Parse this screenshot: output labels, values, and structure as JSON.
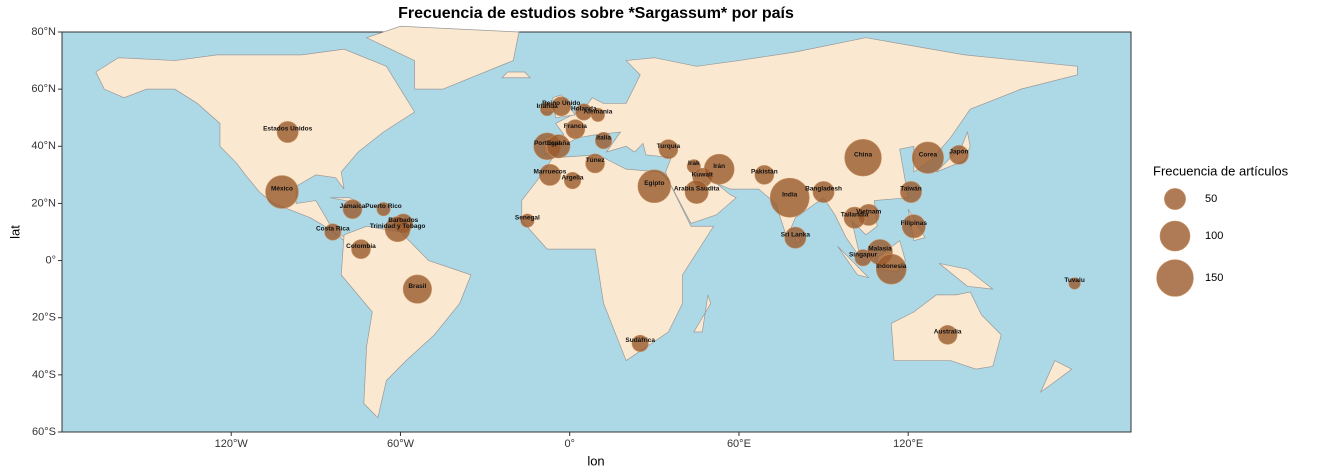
{
  "chart_data": {
    "type": "bubble-map",
    "title": "Frecuencia de estudios sobre *Sargassum* por país",
    "x_label": "lon",
    "y_label": "lat",
    "labels": [
      "Estados Unidos",
      "México",
      "Jamaica",
      "Puerto Rico",
      "Barbados",
      "Trinidad y Tobago",
      "Costa Rica",
      "Colombia",
      "Brasil",
      "Irlanda",
      "Reino Unido",
      "Holanda",
      "Alemania",
      "Francia",
      "Portugal",
      "España",
      "Italia",
      "Túnez",
      "Marruecos",
      "Argelia",
      "Turquía",
      "Egipto",
      "Irak",
      "Kuwait",
      "Irán",
      "Arabia Saudita",
      "Pakistán",
      "India",
      "Bangladesh",
      "China",
      "Corea",
      "Japón",
      "Taiwán",
      "Vietnam",
      "Tailandia",
      "Filipinas",
      "Sri Lanka",
      "Singapur",
      "Malasia",
      "Indonesia",
      "Senegal",
      "Sudáfrica",
      "Australia",
      "Tuvalu"
    ],
    "x": [
      -100,
      -102,
      -77,
      -66,
      -59,
      -61,
      -84,
      -74,
      -54,
      -8,
      -3,
      5,
      10,
      2,
      -8,
      -4,
      12,
      9,
      -7,
      1,
      35,
      30,
      44,
      47,
      53,
      45,
      69,
      78,
      90,
      104,
      127,
      138,
      121,
      106,
      101,
      122,
      80,
      104,
      110,
      114,
      -15,
      25,
      134,
      179
    ],
    "values": [
      45,
      24,
      18,
      18,
      13,
      11,
      10,
      4,
      -10,
      53,
      54,
      52,
      51,
      46,
      40,
      40,
      42,
      34,
      30,
      28,
      39,
      26,
      33,
      29,
      32,
      24,
      30,
      22,
      24,
      36,
      36,
      37,
      24,
      16,
      15,
      12,
      8,
      1,
      3,
      -3,
      14,
      -29,
      -26,
      -8
    ],
    "sizes": [
      50,
      120,
      40,
      20,
      40,
      70,
      30,
      40,
      90,
      20,
      40,
      30,
      20,
      40,
      80,
      60,
      30,
      40,
      50,
      30,
      40,
      120,
      20,
      40,
      100,
      60,
      40,
      170,
      50,
      150,
      110,
      40,
      50,
      50,
      50,
      60,
      50,
      30,
      70,
      100,
      20,
      30,
      40,
      15
    ],
    "color": "#9a5a2c",
    "land_color": "#fbe8d0",
    "ocean_color": "#add8e6",
    "xlim": [
      -180,
      199
    ],
    "ylim": [
      -60,
      80
    ],
    "xticks": [
      {
        "value": -120,
        "label": "120°W"
      },
      {
        "value": -60,
        "label": "60°W"
      },
      {
        "value": 0,
        "label": "0°"
      },
      {
        "value": 60,
        "label": "60°E"
      },
      {
        "value": 120,
        "label": "120°E"
      }
    ],
    "yticks": [
      {
        "value": -60,
        "label": "60°S"
      },
      {
        "value": -40,
        "label": "40°S"
      },
      {
        "value": -20,
        "label": "20°S"
      },
      {
        "value": 0,
        "label": "0°"
      },
      {
        "value": 20,
        "label": "20°N"
      },
      {
        "value": 40,
        "label": "40°N"
      },
      {
        "value": 60,
        "label": "60°N"
      },
      {
        "value": 80,
        "label": "80°N"
      }
    ],
    "legend": {
      "title": "Frecuencia de artículos",
      "sizes": [
        50,
        100,
        150
      ]
    }
  }
}
